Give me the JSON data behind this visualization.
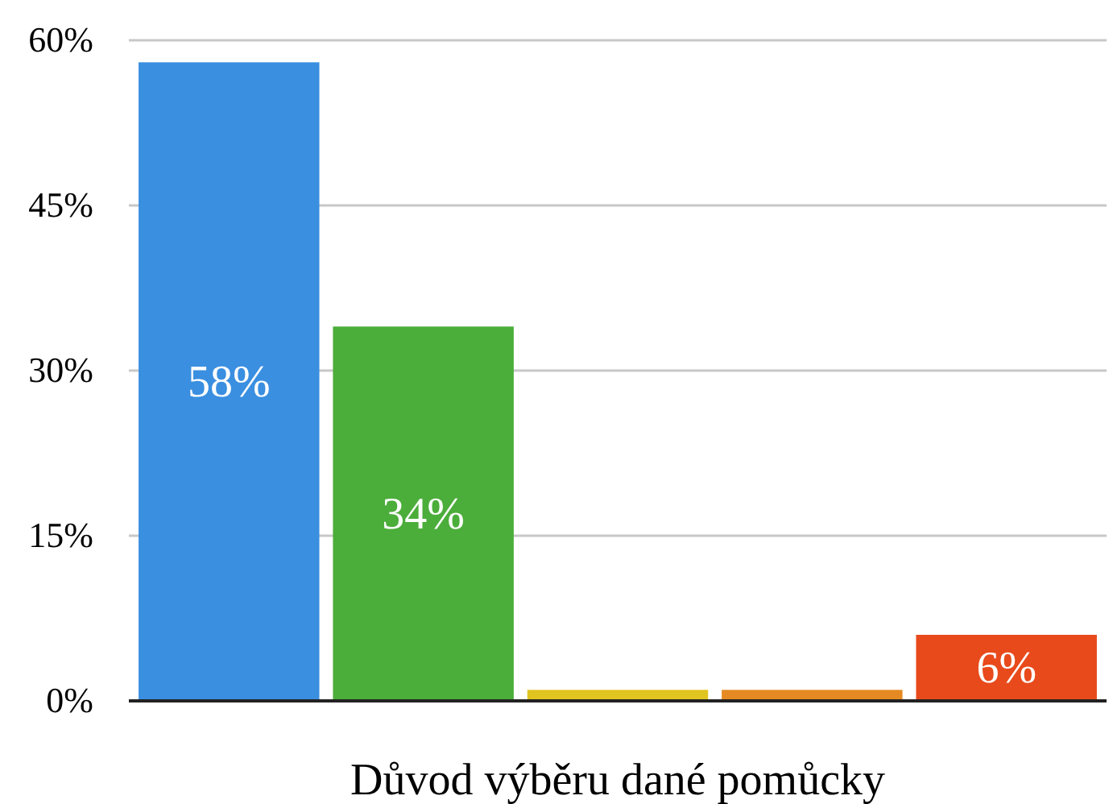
{
  "chart_data": {
    "type": "bar",
    "xlabel": "Důvod výběru dané pomůcky",
    "categories": [
      null,
      null,
      null,
      null,
      null
    ],
    "values": [
      58,
      34,
      1,
      1,
      6
    ],
    "colors": [
      "#3a8fe0",
      "#4bad3a",
      "#e0c420",
      "#e58a22",
      "#e84a1c"
    ],
    "value_labels": [
      "58%",
      "34%",
      null,
      null,
      "6%"
    ],
    "ylim": [
      0,
      60
    ],
    "yticks": [
      {
        "value": 0,
        "label": "0%"
      },
      {
        "value": 15,
        "label": "15%"
      },
      {
        "value": 30,
        "label": "30%"
      },
      {
        "value": 45,
        "label": "45%"
      },
      {
        "value": 60,
        "label": "60%"
      }
    ],
    "grid": "y"
  }
}
